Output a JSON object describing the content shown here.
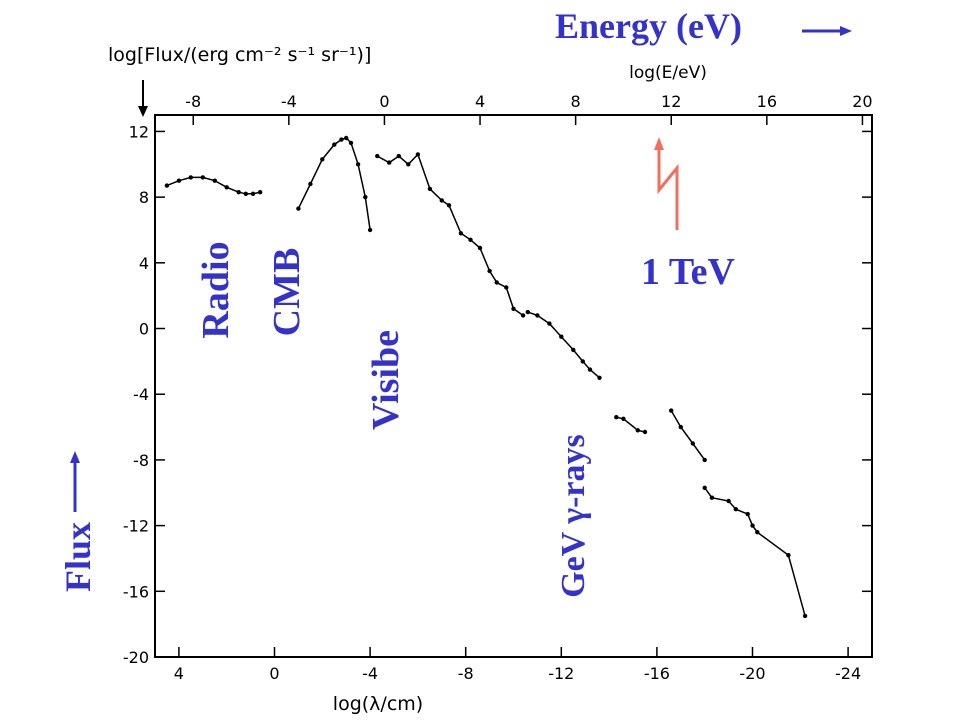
{
  "chart_data": {
    "type": "scatter",
    "title": "",
    "ylabel": "log[Flux/(erg cm⁻² s⁻¹ sr⁻¹)]",
    "xlabel_bottom": "log(λ/cm)",
    "xlabel_top": "log(E/eV)",
    "xlim_bottom": [
      5,
      -25
    ],
    "xlim_top": [
      -9.6,
      20.4
    ],
    "ylim": [
      -20,
      13
    ],
    "x_ticks_bottom": [
      "4",
      "0",
      "-4",
      "-8",
      "-12",
      "-16",
      "-20",
      "-24"
    ],
    "x_ticks_top": [
      "-8",
      "-4",
      "0",
      "4",
      "8",
      "12",
      "16",
      "20"
    ],
    "y_ticks": [
      "12",
      "8",
      "4",
      "0",
      "-4",
      "-8",
      "-12",
      "-16",
      "-20"
    ],
    "grid": false,
    "series": [
      {
        "points": [
          [
            4.5,
            8.7
          ],
          [
            4.0,
            9.0
          ],
          [
            3.5,
            9.2
          ],
          [
            3.0,
            9.2
          ],
          [
            2.5,
            9.0
          ],
          [
            2.0,
            8.6
          ],
          [
            1.5,
            8.3
          ],
          [
            1.2,
            8.2
          ],
          [
            0.9,
            8.2
          ],
          [
            0.6,
            8.3
          ]
        ]
      },
      {
        "points": [
          [
            -1.0,
            7.3
          ],
          [
            -1.5,
            8.8
          ],
          [
            -2.0,
            10.3
          ],
          [
            -2.5,
            11.2
          ],
          [
            -2.8,
            11.5
          ],
          [
            -3.0,
            11.6
          ],
          [
            -3.2,
            11.3
          ],
          [
            -3.5,
            10.0
          ],
          [
            -3.8,
            8.0
          ],
          [
            -4.0,
            6.0
          ]
        ]
      },
      {
        "points": [
          [
            -4.3,
            10.5
          ],
          [
            -4.8,
            10.1
          ],
          [
            -5.2,
            10.5
          ],
          [
            -5.6,
            10.0
          ],
          [
            -6.0,
            10.6
          ],
          [
            -6.5,
            8.5
          ],
          [
            -7.0,
            7.8
          ],
          [
            -7.3,
            7.5
          ],
          [
            -7.8,
            5.8
          ],
          [
            -8.2,
            5.4
          ],
          [
            -8.6,
            4.9
          ],
          [
            -9.0,
            3.5
          ],
          [
            -9.3,
            2.8
          ],
          [
            -9.7,
            2.5
          ],
          [
            -10.0,
            1.2
          ],
          [
            -10.4,
            0.8
          ]
        ]
      },
      {
        "points": [
          [
            -10.6,
            1.0
          ],
          [
            -11.0,
            0.8
          ],
          [
            -11.5,
            0.3
          ],
          [
            -12.0,
            -0.5
          ],
          [
            -12.5,
            -1.3
          ],
          [
            -12.9,
            -2.0
          ],
          [
            -13.2,
            -2.5
          ],
          [
            -13.6,
            -3.0
          ]
        ]
      },
      {
        "points": [
          [
            -14.3,
            -5.4
          ],
          [
            -14.6,
            -5.5
          ],
          [
            -15.2,
            -6.2
          ],
          [
            -15.5,
            -6.3
          ]
        ]
      },
      {
        "points": [
          [
            -16.6,
            -5.0
          ],
          [
            -17.0,
            -6.0
          ],
          [
            -17.5,
            -7.0
          ],
          [
            -18.0,
            -8.0
          ]
        ]
      },
      {
        "points": [
          [
            -18.0,
            -9.7
          ],
          [
            -18.3,
            -10.3
          ],
          [
            -19.0,
            -10.5
          ],
          [
            -19.3,
            -11.0
          ],
          [
            -19.8,
            -11.3
          ],
          [
            -20.0,
            -12.0
          ],
          [
            -20.2,
            -12.4
          ],
          [
            -21.5,
            -13.8
          ],
          [
            -22.2,
            -17.5
          ]
        ]
      }
    ],
    "annotations": [
      "Energy (eV)",
      "1 TeV",
      "Radio",
      "CMB",
      "Visibe",
      "GeV γ-rays",
      "Flux"
    ]
  },
  "labels": {
    "energy": "Energy (eV)",
    "tev": "1 TeV",
    "radio": "Radio",
    "cmb": "CMB",
    "visible": "Visibe",
    "gev": "GeV γ-rays",
    "flux": "Flux",
    "ylabel": "log[Flux/(erg cm⁻² s⁻¹ sr⁻¹)]",
    "xlabel_bottom": "log(λ/cm)",
    "xlabel_top": "log(E/eV)"
  },
  "colors": {
    "annotation": "#3333cc",
    "marker": "#f07060",
    "data": "#000000"
  }
}
